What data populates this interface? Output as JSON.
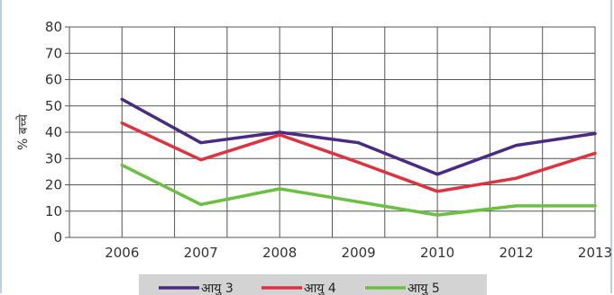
{
  "chart_data": {
    "type": "line",
    "categories": [
      "2006",
      "2007",
      "2008",
      "2009",
      "2010",
      "2012",
      "2013"
    ],
    "ylabel": "% बच्चे",
    "xlabel": "",
    "ylim": [
      0,
      80
    ],
    "yticks": [
      "0",
      "10",
      "20",
      "30",
      "40",
      "50",
      "60",
      "70",
      "80"
    ],
    "grid": true,
    "legend_position": "bottom",
    "series": [
      {
        "name": "आयु 3",
        "color": "#4b2a83",
        "values": [
          52.5,
          36,
          40,
          36,
          24,
          35,
          39.5
        ]
      },
      {
        "name": "आयु 4",
        "color": "#e0313f",
        "values": [
          43.5,
          29.5,
          39,
          28.5,
          17.5,
          22.5,
          32
        ]
      },
      {
        "name": "आयु 5",
        "color": "#6ac040",
        "values": [
          27.5,
          12.5,
          18.5,
          13.5,
          8.5,
          12,
          12
        ]
      }
    ]
  }
}
